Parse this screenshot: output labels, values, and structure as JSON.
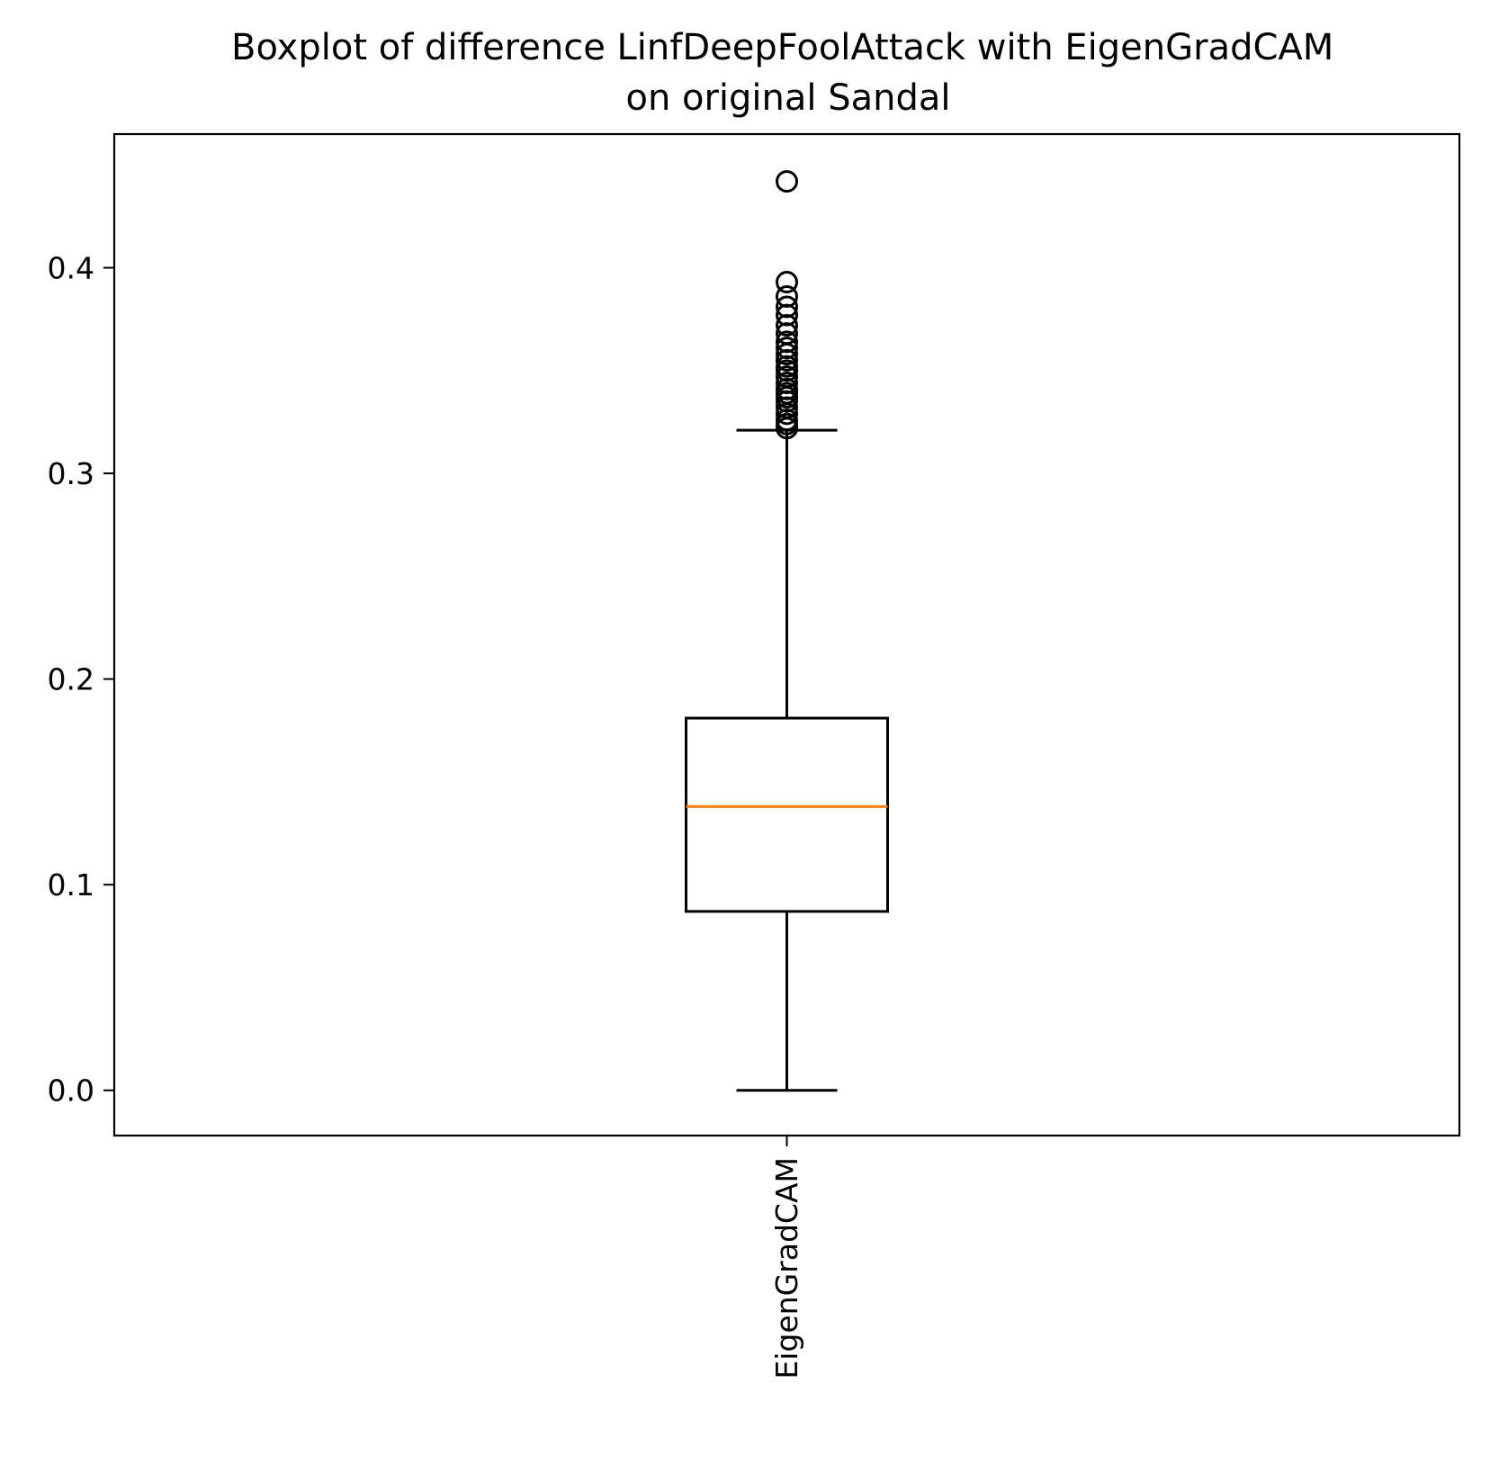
{
  "chart_data": {
    "type": "box",
    "title": "Boxplot of difference LinfDeepFoolAttack with EigenGradCAM\non original Sandal",
    "xlabel": "",
    "ylabel": "",
    "ylim": [
      -0.022,
      0.465
    ],
    "yticks": [
      0.0,
      0.1,
      0.2,
      0.3,
      0.4
    ],
    "ytick_labels": [
      "0.0",
      "0.1",
      "0.2",
      "0.3",
      "0.4"
    ],
    "grid": false,
    "categories": [
      "EigenGradCAM"
    ],
    "colors": {
      "box": "#000000",
      "median": "#ff7f0e",
      "outlier": "#000000"
    },
    "boxes": [
      {
        "label": "EigenGradCAM",
        "whisker_low": 0.0,
        "q1": 0.087,
        "median": 0.138,
        "q3": 0.181,
        "whisker_high": 0.321,
        "outliers": [
          0.322,
          0.324,
          0.326,
          0.329,
          0.332,
          0.335,
          0.337,
          0.339,
          0.341,
          0.344,
          0.347,
          0.35,
          0.352,
          0.355,
          0.358,
          0.361,
          0.364,
          0.368,
          0.372,
          0.377,
          0.381,
          0.386,
          0.393,
          0.442
        ]
      }
    ]
  }
}
